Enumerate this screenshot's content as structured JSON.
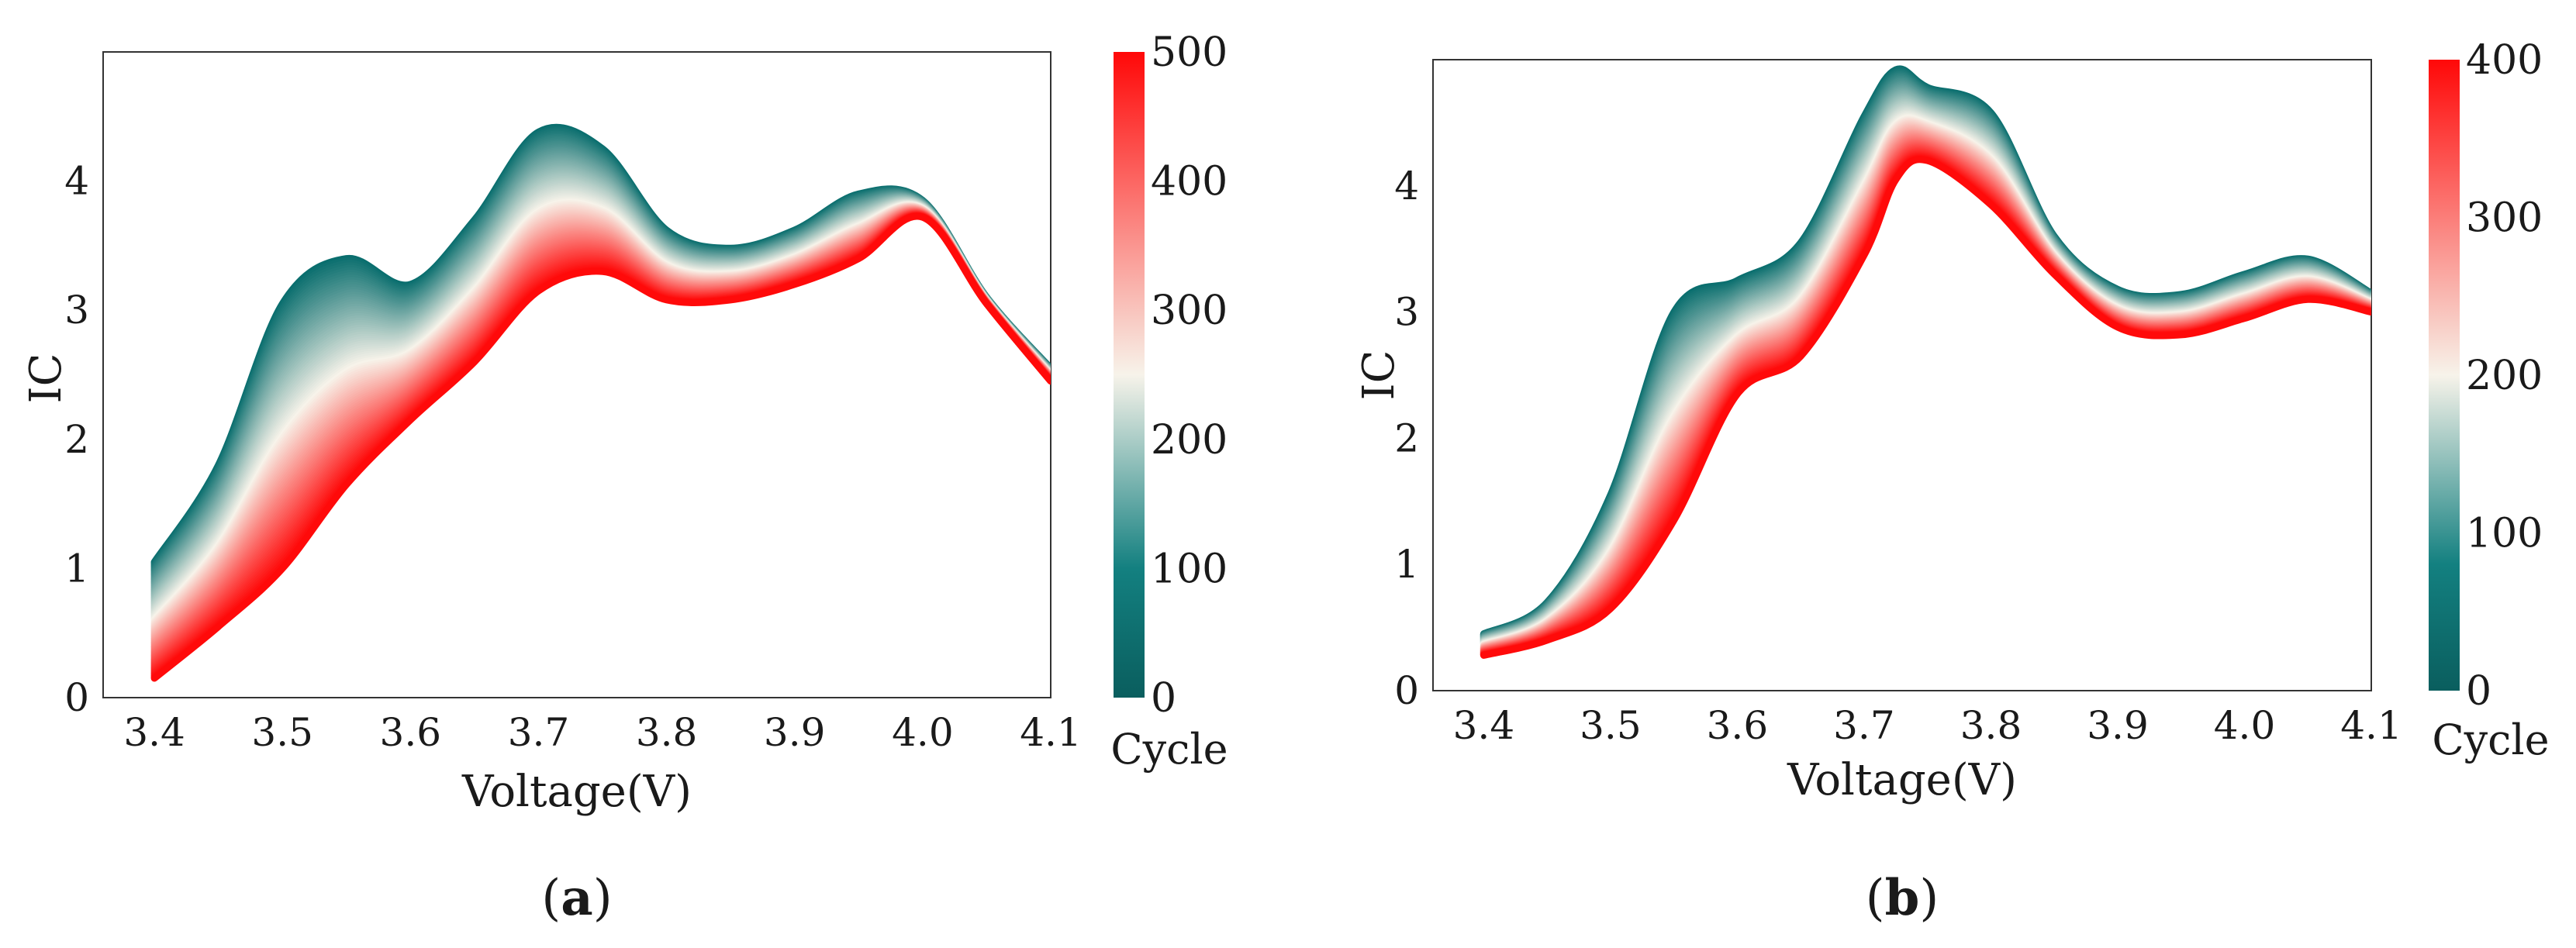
{
  "chart_data": [
    {
      "id": "a",
      "type": "line",
      "panel_label": "a",
      "xlabel": "Voltage(V)",
      "ylabel": "IC",
      "xlim": [
        3.36,
        4.1
      ],
      "ylim": [
        0,
        5.0
      ],
      "xticks": [
        "3.4",
        "3.5",
        "3.6",
        "3.7",
        "3.8",
        "3.9",
        "4.0",
        "4.1"
      ],
      "yticks": [
        "0",
        "1",
        "2",
        "3",
        "4"
      ],
      "colorbar": {
        "title": "Cycle",
        "min": 0,
        "max": 500,
        "ticks": [
          "0",
          "100",
          "200",
          "300",
          "400",
          "500"
        ]
      },
      "colors": {
        "start": "#0a6e6e",
        "mid": "#f7f3ea",
        "end": "#ff0a0a"
      },
      "series": [
        {
          "cycle": 0,
          "x": [
            3.4,
            3.45,
            3.5,
            3.55,
            3.6,
            3.65,
            3.7,
            3.75,
            3.8,
            3.85,
            3.9,
            3.95,
            4.0,
            4.05,
            4.1
          ],
          "values": [
            1.05,
            1.8,
            3.05,
            3.4,
            3.2,
            3.7,
            4.38,
            4.25,
            3.62,
            3.48,
            3.62,
            3.9,
            3.85,
            3.1,
            2.55
          ]
        },
        {
          "cycle": 500,
          "x": [
            3.4,
            3.45,
            3.5,
            3.55,
            3.6,
            3.65,
            3.7,
            3.75,
            3.8,
            3.85,
            3.9,
            3.95,
            4.0,
            4.05,
            4.1
          ],
          "values": [
            0.15,
            0.55,
            1.0,
            1.65,
            2.15,
            2.6,
            3.15,
            3.3,
            3.08,
            3.08,
            3.2,
            3.4,
            3.72,
            3.05,
            2.45
          ]
        }
      ]
    },
    {
      "id": "b",
      "type": "line",
      "panel_label": "b",
      "xlabel": "Voltage(V)",
      "ylabel": "IC",
      "xlim": [
        3.36,
        4.1
      ],
      "ylim": [
        0,
        5.0
      ],
      "xticks": [
        "3.4",
        "3.5",
        "3.6",
        "3.7",
        "3.8",
        "3.9",
        "4.0",
        "4.1"
      ],
      "yticks": [
        "0",
        "1",
        "2",
        "3",
        "4"
      ],
      "colorbar": {
        "title": "Cycle",
        "min": 0,
        "max": 400,
        "ticks": [
          "0",
          "100",
          "200",
          "300",
          "400"
        ]
      },
      "colors": {
        "start": "#0a6e6e",
        "mid": "#f7f3ea",
        "end": "#ff0a0a"
      },
      "series": [
        {
          "cycle": 0,
          "x": [
            3.4,
            3.45,
            3.5,
            3.55,
            3.6,
            3.65,
            3.7,
            3.725,
            3.75,
            3.8,
            3.85,
            3.9,
            3.95,
            4.0,
            4.05,
            4.1
          ],
          "values": [
            0.45,
            0.7,
            1.55,
            3.0,
            3.25,
            3.55,
            4.55,
            4.92,
            4.78,
            4.58,
            3.6,
            3.18,
            3.14,
            3.3,
            3.42,
            3.15
          ]
        },
        {
          "cycle": 400,
          "x": [
            3.4,
            3.45,
            3.5,
            3.55,
            3.6,
            3.65,
            3.7,
            3.725,
            3.75,
            3.8,
            3.85,
            3.9,
            3.95,
            4.0,
            4.05,
            4.1
          ],
          "values": [
            0.28,
            0.4,
            0.65,
            1.35,
            2.35,
            2.65,
            3.45,
            4.05,
            4.2,
            3.85,
            3.3,
            2.88,
            2.82,
            2.95,
            3.1,
            3.0
          ]
        }
      ]
    }
  ]
}
